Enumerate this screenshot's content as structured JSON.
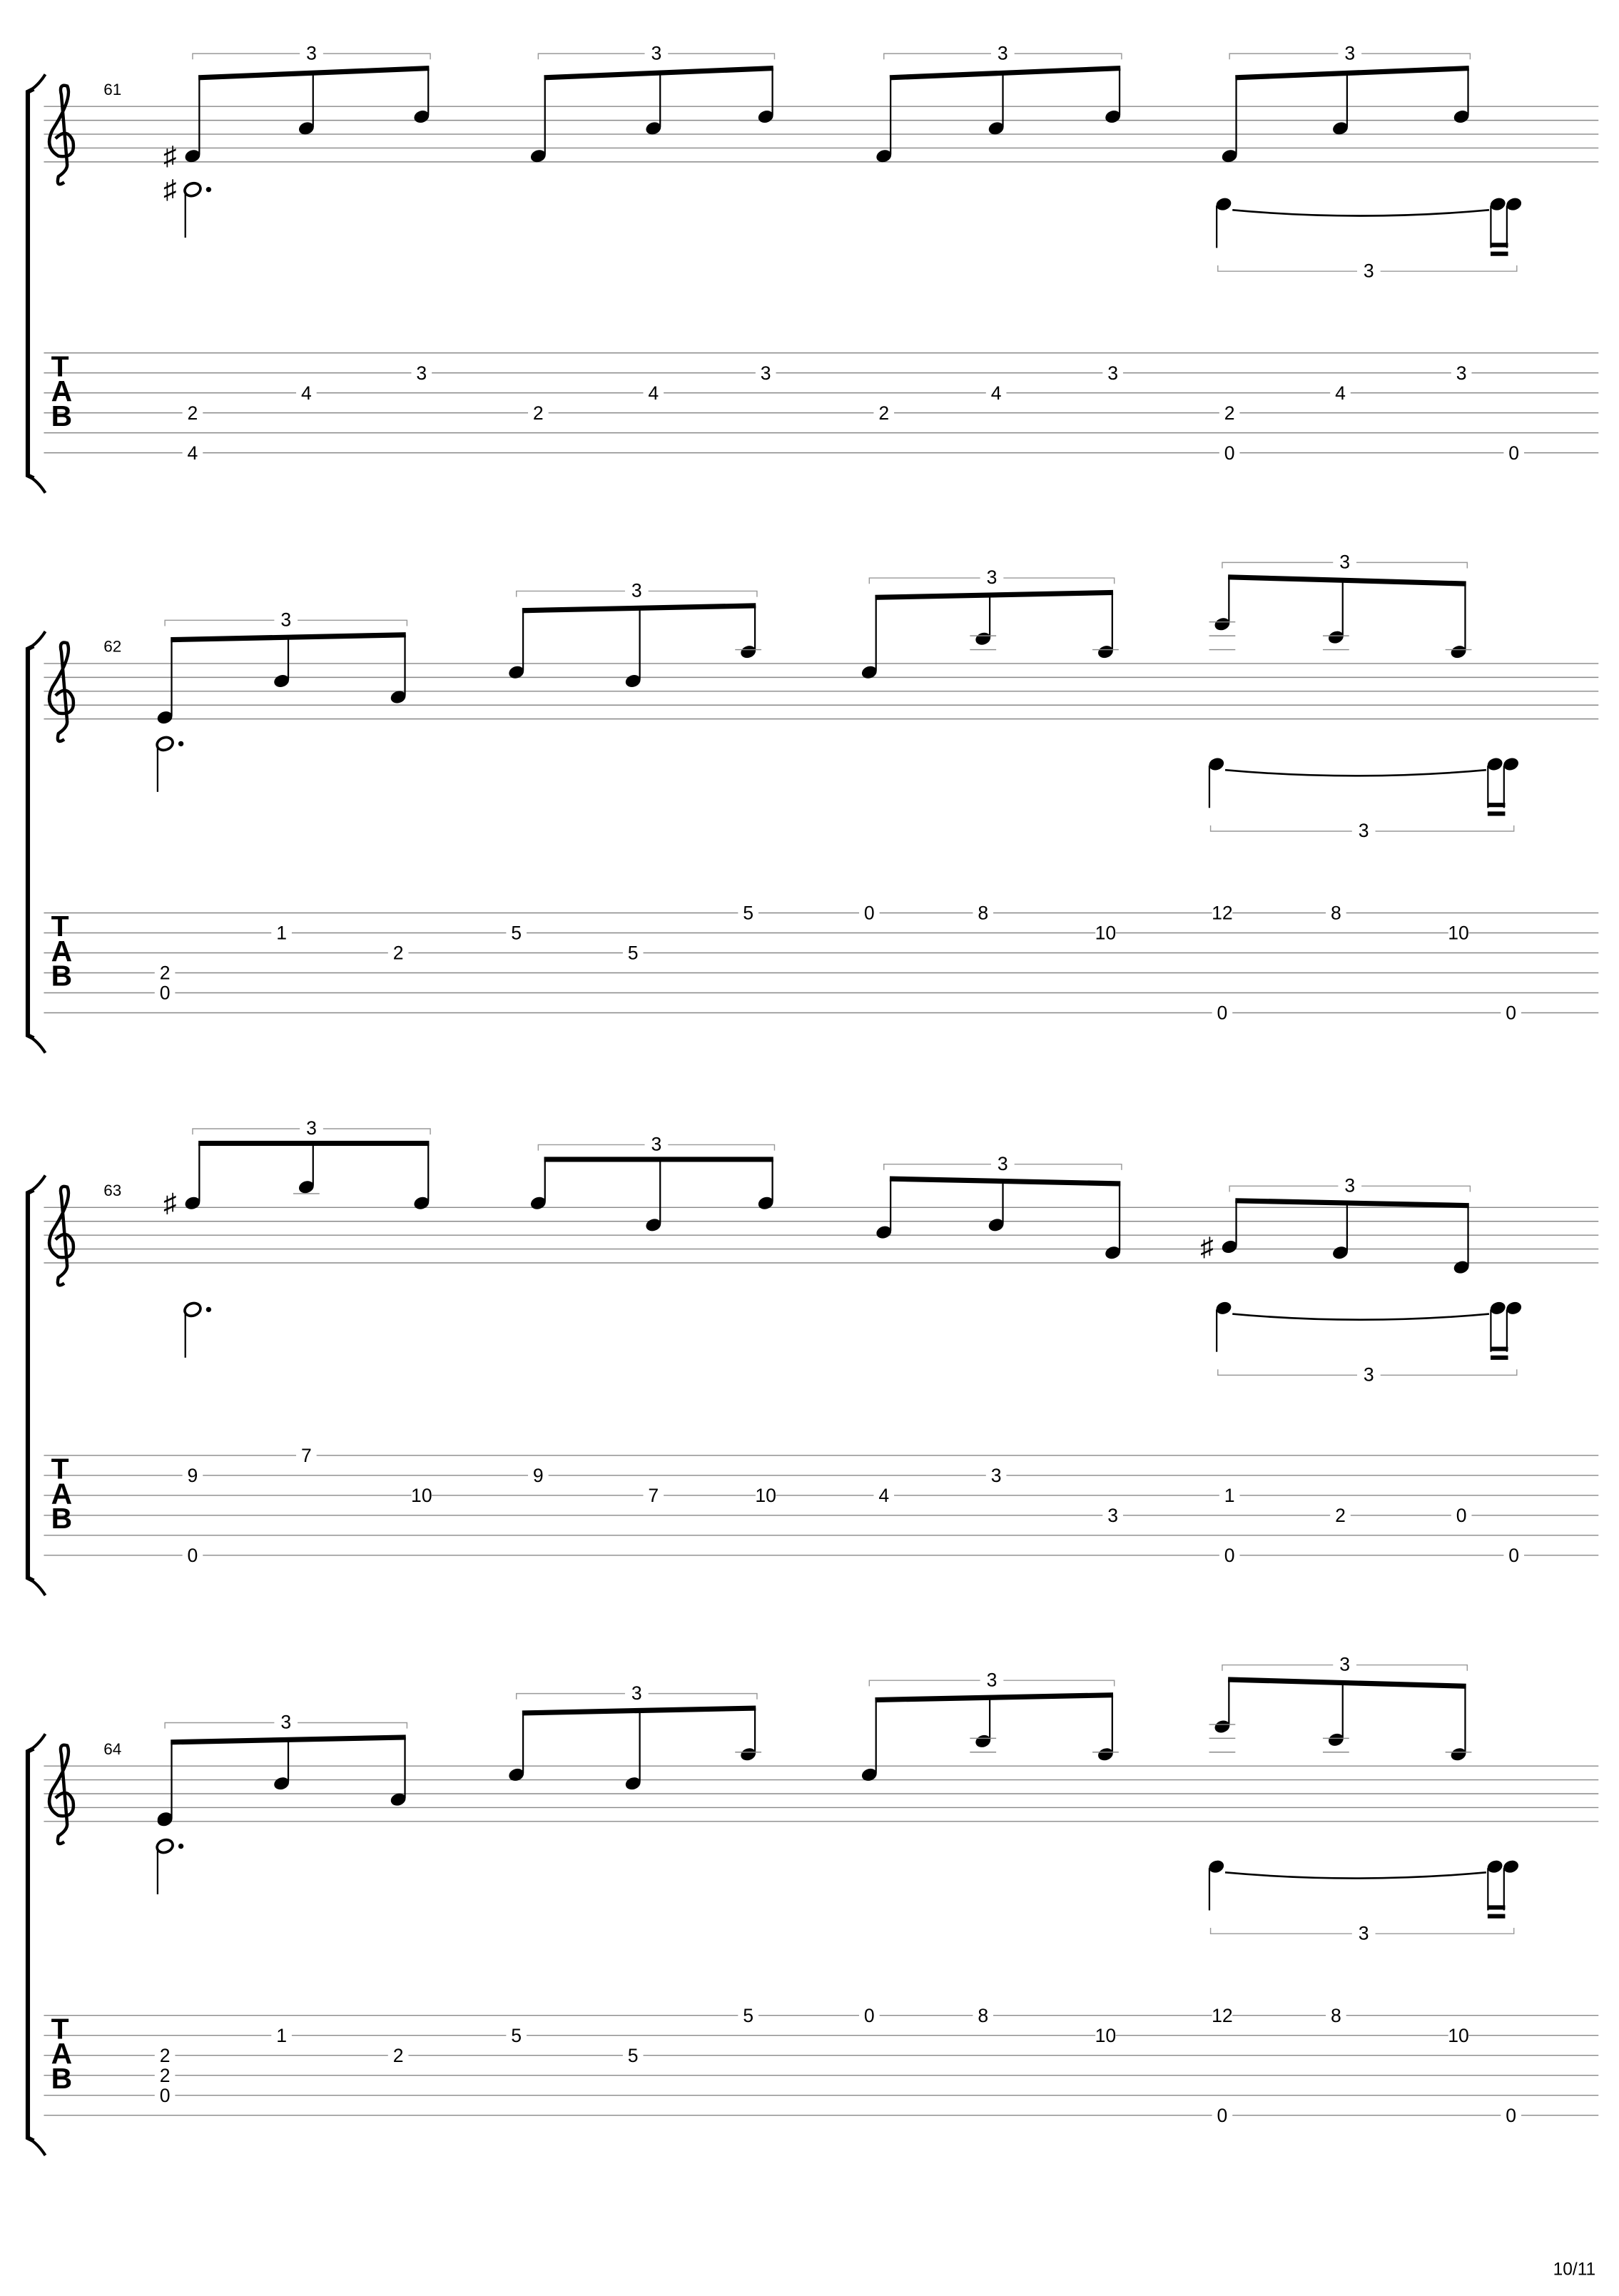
{
  "systems": [
    {
      "measure": 61,
      "triplets": [
        3,
        3,
        3,
        3,
        3
      ],
      "tab": [
        [
          null,
          null,
          null,
          2,
          null,
          4
        ],
        [
          null,
          null,
          4,
          null,
          null,
          null
        ],
        [
          null,
          3,
          null,
          null,
          null,
          null
        ],
        [
          null,
          null,
          null,
          2,
          null,
          null
        ],
        [
          null,
          null,
          4,
          null,
          null,
          null
        ],
        [
          null,
          3,
          null,
          null,
          null,
          null
        ],
        [
          null,
          null,
          null,
          2,
          null,
          null
        ],
        [
          null,
          null,
          4,
          null,
          null,
          null
        ],
        [
          null,
          3,
          null,
          null,
          null,
          null
        ],
        [
          null,
          null,
          null,
          2,
          null,
          0
        ],
        [
          null,
          null,
          4,
          null,
          null,
          null
        ],
        [
          null,
          3,
          null,
          null,
          null,
          null
        ],
        [
          null,
          null,
          null,
          null,
          null,
          0
        ]
      ]
    },
    {
      "measure": 62,
      "triplets": [
        3,
        3,
        3,
        3,
        3
      ],
      "tab": [
        [
          null,
          null,
          null,
          2,
          0,
          null
        ],
        [
          null,
          1,
          null,
          null,
          null,
          null
        ],
        [
          null,
          null,
          2,
          null,
          null,
          null
        ],
        [
          null,
          5,
          null,
          null,
          null,
          null
        ],
        [
          null,
          null,
          5,
          null,
          null,
          null
        ],
        [
          5,
          null,
          null,
          null,
          null,
          null
        ],
        [
          0,
          null,
          null,
          null,
          null,
          null
        ],
        [
          8,
          null,
          null,
          null,
          null,
          null
        ],
        [
          null,
          10,
          null,
          null,
          null,
          null
        ],
        [
          12,
          null,
          null,
          null,
          null,
          0
        ],
        [
          8,
          null,
          null,
          null,
          null,
          null
        ],
        [
          null,
          10,
          null,
          null,
          null,
          null
        ],
        [
          null,
          null,
          null,
          null,
          null,
          0
        ]
      ]
    },
    {
      "measure": 63,
      "triplets": [
        3,
        3,
        3,
        3,
        3
      ],
      "tab": [
        [
          null,
          9,
          null,
          null,
          null,
          0
        ],
        [
          7,
          null,
          null,
          null,
          null,
          null
        ],
        [
          null,
          null,
          10,
          null,
          null,
          null
        ],
        [
          null,
          9,
          null,
          null,
          null,
          null
        ],
        [
          null,
          null,
          7,
          null,
          null,
          null
        ],
        [
          null,
          null,
          10,
          null,
          null,
          null
        ],
        [
          null,
          null,
          4,
          null,
          null,
          null
        ],
        [
          null,
          3,
          null,
          null,
          null,
          null
        ],
        [
          null,
          null,
          null,
          3,
          null,
          null
        ],
        [
          null,
          null,
          1,
          null,
          null,
          0
        ],
        [
          null,
          null,
          null,
          2,
          null,
          null
        ],
        [
          null,
          null,
          null,
          0,
          null,
          null
        ],
        [
          null,
          null,
          null,
          null,
          null,
          0
        ]
      ]
    },
    {
      "measure": 64,
      "triplets": [
        3,
        3,
        3,
        3,
        3
      ],
      "tab": [
        [
          null,
          null,
          2,
          2,
          0,
          null
        ],
        [
          null,
          1,
          null,
          null,
          null,
          null
        ],
        [
          null,
          null,
          2,
          null,
          null,
          null
        ],
        [
          null,
          5,
          null,
          null,
          null,
          null
        ],
        [
          null,
          null,
          5,
          null,
          null,
          null
        ],
        [
          5,
          null,
          null,
          null,
          null,
          null
        ],
        [
          0,
          null,
          null,
          null,
          null,
          null
        ],
        [
          8,
          null,
          null,
          null,
          null,
          null
        ],
        [
          null,
          10,
          null,
          null,
          null,
          null
        ],
        [
          12,
          null,
          null,
          null,
          null,
          0
        ],
        [
          8,
          null,
          null,
          null,
          null,
          null
        ],
        [
          null,
          10,
          null,
          null,
          null,
          null
        ],
        [
          null,
          null,
          null,
          null,
          null,
          0
        ]
      ]
    }
  ],
  "page_number": "10/11"
}
